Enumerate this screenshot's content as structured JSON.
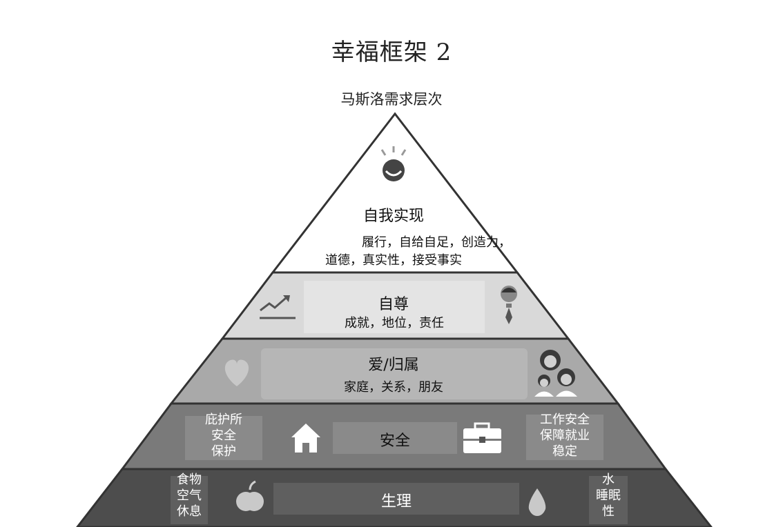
{
  "title": "幸福框架 2",
  "subtitle": "马斯洛需求层次",
  "levels": {
    "self_actualization": {
      "title": "自我实现",
      "desc_line1": "履行，自给自足，创造力，",
      "desc_line2": "道德，真实性，接受事实",
      "icon": "sun-smile-icon"
    },
    "esteem": {
      "title": "自尊",
      "desc": "成就，地位，责任",
      "icons": [
        "trend-up-icon",
        "businessman-icon"
      ]
    },
    "love": {
      "title": "爱/归属",
      "desc": "家庭，关系，朋友",
      "icons": [
        "heart-icon",
        "family-icon"
      ]
    },
    "safety": {
      "title": "安全",
      "left_lines": [
        "庇护所",
        "安全",
        "保护"
      ],
      "right_lines": [
        "工作安全",
        "保障就业",
        "稳定"
      ],
      "icons": [
        "house-icon",
        "briefcase-icon"
      ]
    },
    "physiological": {
      "title": "生理",
      "left_lines": [
        "食物",
        "空气",
        "休息"
      ],
      "right_lines": [
        "水",
        "睡眠",
        "性"
      ],
      "icons": [
        "apple-icon",
        "water-drop-icon"
      ]
    }
  },
  "colors": {
    "level1": "#ffffff",
    "level2": "#d9d9d9",
    "level3": "#a9a9a9",
    "level4": "#7a7a7a",
    "level5": "#4d4d4d"
  }
}
